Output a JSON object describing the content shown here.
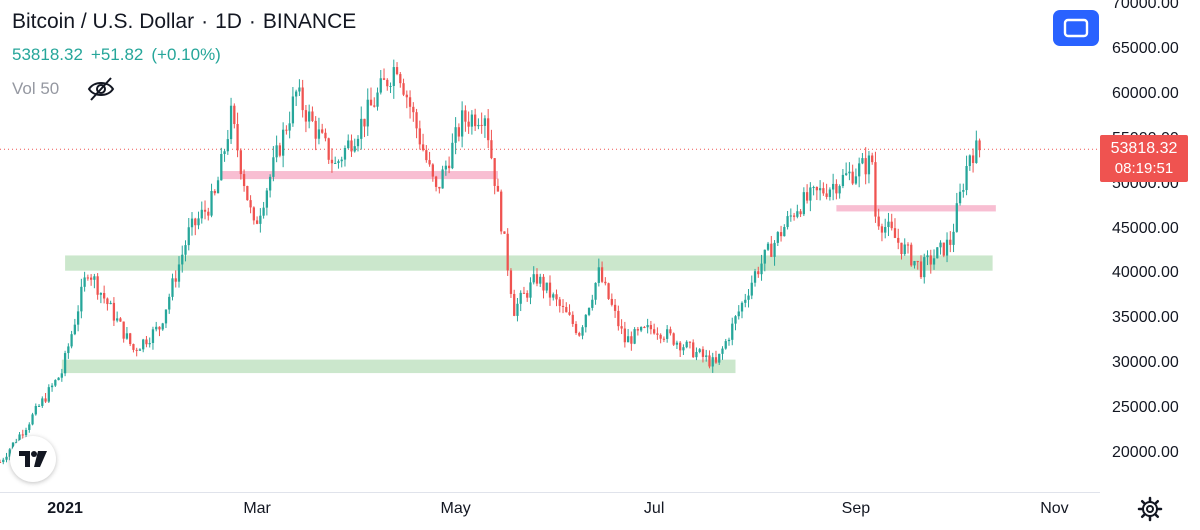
{
  "header": {
    "symbol": "Bitcoin / U.S. Dollar",
    "interval": "1D",
    "exchange": "BINANCE",
    "separator": "·",
    "last_price": "53818.32",
    "change": "+51.82",
    "change_pct": "(+0.10%)",
    "volume_label": "Vol 50"
  },
  "price_label": {
    "price": "53818.32",
    "countdown": "08:19:51"
  },
  "icons": {
    "visibility": "eye-off-icon",
    "fullscreen": "fullscreen-icon",
    "logo": "tradingview-logo",
    "settings": "gear-icon"
  },
  "colors": {
    "up": "#26a69a",
    "down": "#ef5350",
    "support_zone": "#c8e6c9",
    "resistance_zone": "#f8bbd0",
    "accent": "#2962ff"
  },
  "chart_data": {
    "type": "candlestick",
    "title": "Bitcoin / U.S. Dollar · 1D · BINANCE",
    "ylim": [
      16000,
      70000
    ],
    "y_ticks": [
      "20000.00",
      "25000.00",
      "30000.00",
      "35000.00",
      "40000.00",
      "45000.00",
      "50000.00",
      "55000.00",
      "60000.00",
      "65000.00",
      "70000.00"
    ],
    "x_range": [
      "2020-12-12",
      "2021-11-15"
    ],
    "x_ticks": [
      {
        "label": "2021",
        "date": "2021-01-01",
        "bold": true
      },
      {
        "label": "Mar",
        "date": "2021-03-01"
      },
      {
        "label": "May",
        "date": "2021-05-01"
      },
      {
        "label": "Jul",
        "date": "2021-07-01"
      },
      {
        "label": "Sep",
        "date": "2021-09-01"
      },
      {
        "label": "Nov",
        "date": "2021-11-01"
      }
    ],
    "last_price": 53818.32,
    "price_path": [
      [
        "2020-12-12",
        19000
      ],
      [
        "2020-12-20",
        23000
      ],
      [
        "2020-12-31",
        29000
      ],
      [
        "2021-01-08",
        40500
      ],
      [
        "2021-01-15",
        36000
      ],
      [
        "2021-01-22",
        31500
      ],
      [
        "2021-01-30",
        34000
      ],
      [
        "2021-02-08",
        44500
      ],
      [
        "2021-02-16",
        48500
      ],
      [
        "2021-02-21",
        57500
      ],
      [
        "2021-02-28",
        45000
      ],
      [
        "2021-03-13",
        60000
      ],
      [
        "2021-03-25",
        52000
      ],
      [
        "2021-04-05",
        58500
      ],
      [
        "2021-04-13",
        63500
      ],
      [
        "2021-04-25",
        49000
      ],
      [
        "2021-05-03",
        57000
      ],
      [
        "2021-05-10",
        58000
      ],
      [
        "2021-05-19",
        36000
      ],
      [
        "2021-05-26",
        39500
      ],
      [
        "2021-06-08",
        33500
      ],
      [
        "2021-06-14",
        40000
      ],
      [
        "2021-06-22",
        32500
      ],
      [
        "2021-07-01",
        34000
      ],
      [
        "2021-07-20",
        29800
      ],
      [
        "2021-08-01",
        40000
      ],
      [
        "2021-08-14",
        47500
      ],
      [
        "2021-08-23",
        49500
      ],
      [
        "2021-09-06",
        52500
      ],
      [
        "2021-09-07",
        46500
      ],
      [
        "2021-09-21",
        40500
      ],
      [
        "2021-09-30",
        43500
      ],
      [
        "2021-10-06",
        53500
      ],
      [
        "2021-10-09",
        53818
      ]
    ],
    "zones": [
      {
        "kind": "support",
        "from": "2020-12-31",
        "to": "2021-07-26",
        "low": 28900,
        "high": 30400
      },
      {
        "kind": "support",
        "from": "2021-01-01",
        "to": "2021-10-13",
        "low": 40300,
        "high": 42000
      },
      {
        "kind": "resistance",
        "from": "2021-02-18",
        "to": "2021-05-14",
        "low": 50500,
        "high": 51400
      },
      {
        "kind": "resistance",
        "from": "2021-08-26",
        "to": "2021-10-14",
        "low": 46900,
        "high": 47600
      }
    ]
  }
}
